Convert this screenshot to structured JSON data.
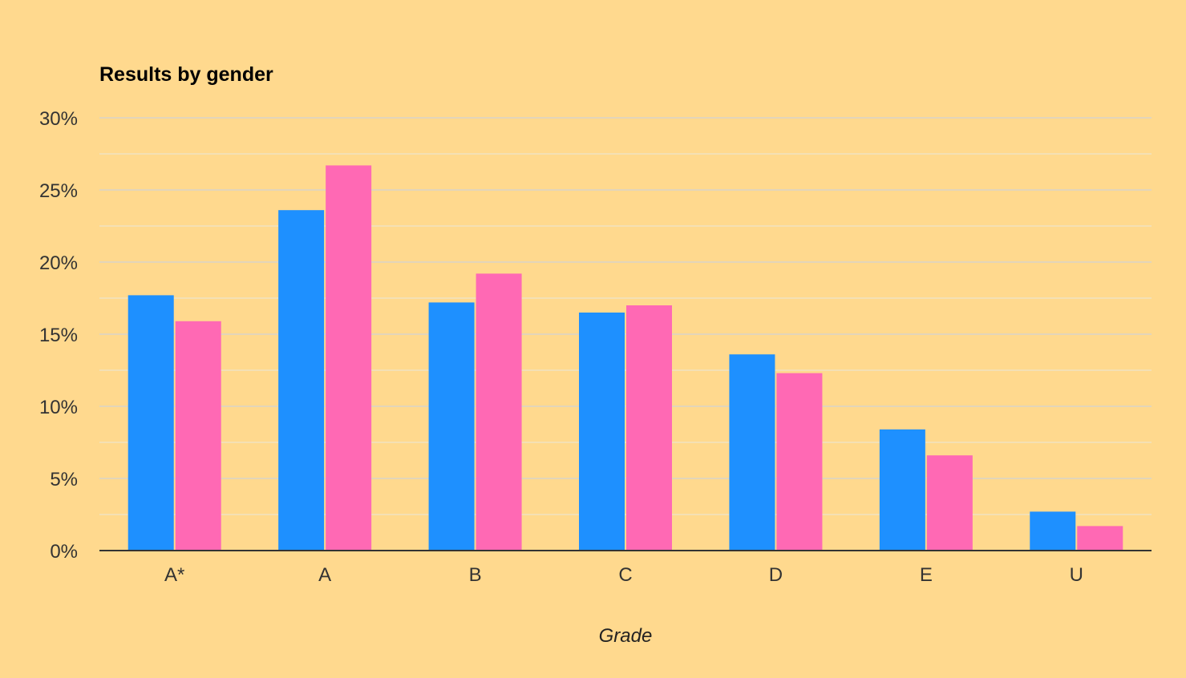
{
  "chart_data": {
    "type": "bar",
    "title": "Results by gender",
    "xlabel": "Grade",
    "ylabel": "",
    "categories": [
      "A*",
      "A",
      "B",
      "C",
      "D",
      "E",
      "U"
    ],
    "series": [
      {
        "color": "#1e90ff",
        "values": [
          17.7,
          23.6,
          17.2,
          16.5,
          13.6,
          8.4,
          2.7
        ]
      },
      {
        "color": "#ff69b4",
        "values": [
          15.9,
          26.7,
          19.2,
          17.0,
          12.3,
          6.6,
          1.7
        ]
      }
    ],
    "ylim": [
      0,
      30
    ],
    "yticks": [
      0,
      5,
      10,
      15,
      20,
      25,
      30
    ],
    "ytick_labels": [
      "0%",
      "5%",
      "10%",
      "15%",
      "20%",
      "25%",
      "30%"
    ],
    "grid": true,
    "minor_grid": true,
    "legend": "none",
    "colors": {
      "background": "#ffd98e",
      "gridline": "#d9d4c8",
      "minor_gridline": "#f0e2c0",
      "axis_line": "#333333"
    }
  }
}
